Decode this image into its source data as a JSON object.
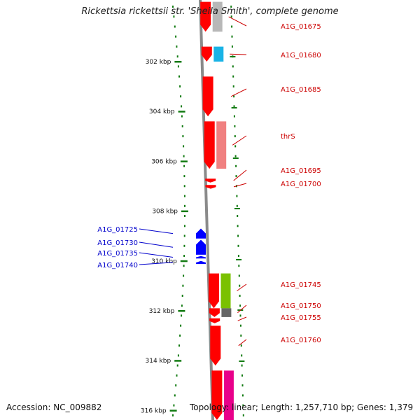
{
  "title": "Rickettsia rickettsii str. 'Sheila Smith', complete genome",
  "accession": "Accession: NC_009882",
  "summary": "Topology: linear; Length: 1,257,710 bp; Genes: 1,379",
  "colors": {
    "tick": "#117a11",
    "backbone": "#8a8a8a",
    "forward_label": "#cc0000",
    "reverse_label": "#0000cc",
    "cds_forward": "#ff0000",
    "cds_reverse": "#0000ff"
  },
  "scale_labels": [
    {
      "kbp": 302,
      "label": "302 kbp"
    },
    {
      "kbp": 304,
      "label": "304 kbp"
    },
    {
      "kbp": 306,
      "label": "306 kbp"
    },
    {
      "kbp": 308,
      "label": "308 kbp"
    },
    {
      "kbp": 310,
      "label": "310 kbp"
    },
    {
      "kbp": 312,
      "label": "312 kbp"
    },
    {
      "kbp": 314,
      "label": "314 kbp"
    },
    {
      "kbp": 316,
      "label": "316 kbp"
    }
  ],
  "forward_genes": [
    {
      "name": "A1G_01675",
      "start_kbp": 299.6,
      "end_kbp": 300.8,
      "feature_color": "#b8b8b8",
      "feature_label": "A1G_01675"
    },
    {
      "name": "A1G_01680",
      "start_kbp": 301.4,
      "end_kbp": 302.0,
      "feature_color": "#19b3e6",
      "feature_label": "A1G_01680"
    },
    {
      "name": "A1G_01685",
      "start_kbp": 302.6,
      "end_kbp": 304.2,
      "feature_color": "",
      "feature_label": "A1G_01685"
    },
    {
      "name": "thrS",
      "start_kbp": 304.4,
      "end_kbp": 306.3,
      "feature_color": "#f08080",
      "feature_label": "thrS"
    },
    {
      "name": "A1G_01695",
      "start_kbp": 306.7,
      "end_kbp": 306.85,
      "feature_color": "",
      "feature_label": "A1G_01695"
    },
    {
      "name": "A1G_01700",
      "start_kbp": 306.95,
      "end_kbp": 307.1,
      "feature_color": "",
      "feature_label": "A1G_01700"
    },
    {
      "name": "A1G_01745",
      "start_kbp": 310.5,
      "end_kbp": 311.9,
      "feature_color": "#7ac100",
      "feature_label": "A1G_01745"
    },
    {
      "name": "A1G_01750",
      "start_kbp": 311.9,
      "end_kbp": 312.25,
      "feature_color": "#666666",
      "feature_label": "A1G_01750"
    },
    {
      "name": "A1G_01755",
      "start_kbp": 312.3,
      "end_kbp": 312.5,
      "feature_color": "",
      "feature_label": "A1G_01755"
    },
    {
      "name": "A1G_01760",
      "start_kbp": 312.6,
      "end_kbp": 314.2,
      "feature_color": "",
      "feature_label": "A1G_01760"
    },
    {
      "name": "",
      "start_kbp": 314.4,
      "end_kbp": 316.4,
      "feature_color": "#e8008a",
      "feature_label": ""
    }
  ],
  "reverse_genes": [
    {
      "name": "A1G_01725",
      "start_kbp": 308.7,
      "end_kbp": 309.1
    },
    {
      "name": "A1G_01730",
      "start_kbp": 309.15,
      "end_kbp": 309.75
    },
    {
      "name": "A1G_01735",
      "start_kbp": 309.8,
      "end_kbp": 309.9
    },
    {
      "name": "A1G_01740",
      "start_kbp": 310.0,
      "end_kbp": 310.12
    }
  ]
}
